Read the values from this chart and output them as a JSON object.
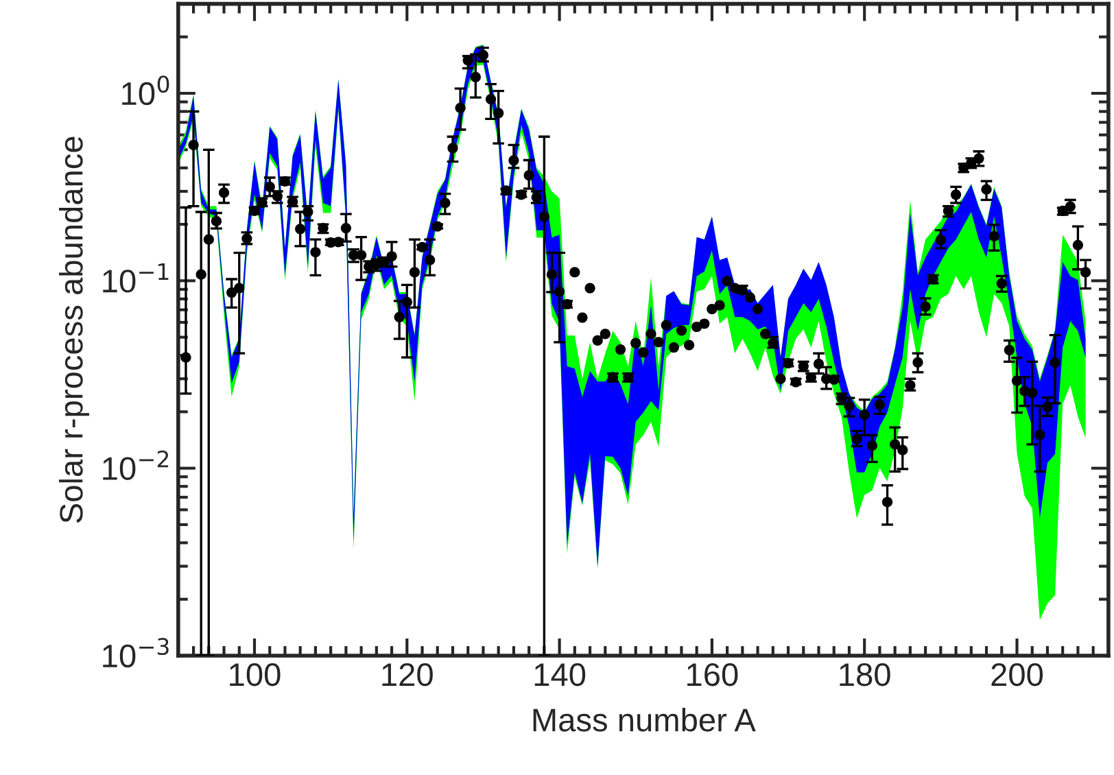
{
  "chart_data": {
    "type": "scatter",
    "xlabel": "Mass number A",
    "ylabel": "Solar r-process abundance",
    "log": "y",
    "xlim": [
      90,
      212
    ],
    "xticks": [
      100,
      120,
      140,
      160,
      180,
      200
    ],
    "ylim": [
      0.001,
      3
    ],
    "yticks": [
      {
        "value": 0.001,
        "label": "10$^{−3}$"
      },
      {
        "value": 0.01,
        "label": "10$^{−2}$"
      },
      {
        "value": 0.1,
        "label": "10$^{−1}$"
      },
      {
        "value": 1,
        "label": "10$^{0}$"
      }
    ],
    "grid": false,
    "series": [
      {
        "type": "area",
        "color": "#00ff00",
        "values": [
          null,
          null,
          null,
          null,
          null,
          null,
          null,
          null,
          null,
          null,
          null,
          null,
          null,
          null,
          null,
          null,
          null,
          null,
          null,
          null,
          null,
          null,
          null,
          null,
          null,
          null,
          null,
          null,
          null,
          null,
          null,
          null,
          null,
          null,
          null,
          null,
          null,
          null,
          null,
          null,
          null,
          null,
          null,
          null,
          null,
          null,
          null,
          null,
          null,
          null,
          null,
          null,
          null,
          null,
          null,
          null,
          null,
          null,
          null,
          null,
          null,
          null,
          null,
          null,
          null,
          null,
          null,
          null,
          null,
          null,
          null,
          null,
          null,
          null,
          null,
          null,
          null,
          null,
          null,
          null,
          null,
          null,
          null,
          null,
          null,
          null,
          null,
          null,
          null,
          null,
          null,
          null,
          null,
          null,
          null,
          null,
          null,
          null,
          null,
          null,
          null,
          null,
          null,
          null,
          null,
          null,
          null,
          null,
          null,
          null,
          null,
          null,
          null,
          null,
          null,
          null,
          null,
          null,
          null,
          null
        ],
        "x": [
          90,
          91,
          92,
          93,
          94,
          95,
          96,
          97,
          98,
          99,
          100,
          101,
          102,
          103,
          104,
          105,
          106,
          107,
          108,
          109,
          110,
          111,
          112,
          113,
          114,
          115,
          116,
          117,
          118,
          119,
          120,
          121,
          122,
          123,
          124,
          125,
          126,
          127,
          128,
          129,
          130,
          131,
          132,
          133,
          134,
          135,
          136,
          137,
          138,
          139,
          140,
          141,
          142,
          143,
          144,
          145,
          146,
          147,
          148,
          149,
          150,
          151,
          152,
          153,
          154,
          155,
          156,
          157,
          158,
          159,
          160,
          161,
          162,
          163,
          164,
          165,
          166,
          167,
          168,
          169,
          170,
          171,
          172,
          173,
          174,
          175,
          176,
          177,
          178,
          179,
          180,
          181,
          182,
          183,
          184,
          185,
          186,
          187,
          188,
          189,
          190,
          191,
          192,
          193,
          194,
          195,
          196,
          197,
          198,
          199,
          200,
          201,
          202,
          203,
          204,
          205,
          206,
          207,
          208,
          209
        ],
        "upper": [
          0.52,
          0.63,
          0.99,
          0.31,
          0.25,
          0.25,
          0.087,
          0.04,
          0.05,
          0.19,
          0.44,
          0.25,
          0.67,
          0.58,
          0.15,
          0.47,
          0.61,
          0.22,
          0.82,
          0.36,
          0.41,
          1.2,
          0.42,
          0.0057,
          0.087,
          0.115,
          0.175,
          0.12,
          0.135,
          0.087,
          0.087,
          0.052,
          0.135,
          0.2,
          0.3,
          0.35,
          0.58,
          0.86,
          1.42,
          1.77,
          1.82,
          1.17,
          0.78,
          0.25,
          0.5,
          0.83,
          0.66,
          0.4,
          0.36,
          0.3,
          0.275,
          0.051,
          0.051,
          0.03,
          0.047,
          0.03,
          0.041,
          0.054,
          0.047,
          0.035,
          0.061,
          0.039,
          0.104,
          0.035,
          0.083,
          0.088,
          0.076,
          0.075,
          0.171,
          0.166,
          0.22,
          0.129,
          0.133,
          0.095,
          0.088,
          0.09,
          0.076,
          0.085,
          0.095,
          0.039,
          0.08,
          0.095,
          0.116,
          0.101,
          0.126,
          0.095,
          0.064,
          0.035,
          0.025,
          0.022,
          0.02,
          0.024,
          0.026,
          0.029,
          0.044,
          0.085,
          0.268,
          0.11,
          0.166,
          0.186,
          0.208,
          0.246,
          0.25,
          0.28,
          0.33,
          0.25,
          0.2,
          0.317,
          0.25,
          0.11,
          0.065,
          0.052,
          0.045,
          0.03,
          0.04,
          0.055,
          0.176,
          0.149,
          0.126,
          0.061
        ],
        "lower": [
          0.42,
          0.52,
          0.72,
          0.25,
          0.22,
          0.21,
          0.066,
          0.024,
          0.035,
          0.14,
          0.27,
          0.18,
          0.45,
          0.39,
          0.1,
          0.27,
          0.4,
          0.11,
          0.52,
          0.23,
          0.23,
          0.8,
          0.21,
          0.0037,
          0.062,
          0.08,
          0.13,
          0.09,
          0.1,
          0.063,
          0.057,
          0.0228,
          0.09,
          0.125,
          0.21,
          0.26,
          0.41,
          0.59,
          1.05,
          1.4,
          1.42,
          0.9,
          0.53,
          0.125,
          0.34,
          0.62,
          0.44,
          0.17,
          0.17,
          0.065,
          0.055,
          0.0035,
          0.009,
          0.0063,
          0.011,
          0.0029,
          0.011,
          0.0105,
          0.0094,
          0.0064,
          0.0134,
          0.015,
          0.0177,
          0.013,
          0.039,
          0.043,
          0.045,
          0.048,
          0.0875,
          0.09,
          0.106,
          0.059,
          0.064,
          0.041,
          0.049,
          0.041,
          0.033,
          0.044,
          0.031,
          0.025,
          0.037,
          0.049,
          0.055,
          0.044,
          0.061,
          0.037,
          0.025,
          0.0188,
          0.0095,
          0.0054,
          0.0072,
          0.0076,
          0.01,
          0.0085,
          0.0124,
          0.0208,
          0.061,
          0.037,
          0.061,
          0.064,
          0.08,
          0.085,
          0.106,
          0.09,
          0.106,
          0.068,
          0.05,
          0.085,
          0.076,
          0.057,
          0.012,
          0.0071,
          0.0061,
          0.00155,
          0.0019,
          0.0021,
          0.022,
          0.0277,
          0.0188,
          0.0145
        ]
      },
      {
        "type": "area",
        "color": "#0000ff",
        "values": [
          null,
          null,
          null,
          null,
          null,
          null,
          null,
          null,
          null,
          null,
          null,
          null,
          null,
          null,
          null,
          null,
          null,
          null,
          null,
          null,
          null,
          null,
          null,
          null,
          null,
          null,
          null,
          null,
          null,
          null,
          null,
          null,
          null,
          null,
          null,
          null,
          null,
          null,
          null,
          null,
          null,
          null,
          null,
          null,
          null,
          null,
          null,
          null,
          null,
          null,
          null,
          null,
          null,
          null,
          null,
          null,
          null,
          null,
          null,
          null,
          null,
          null,
          null,
          null,
          null,
          null,
          null,
          null,
          null,
          null,
          null,
          null,
          null,
          null,
          null,
          null,
          null,
          null,
          null,
          null,
          null,
          null,
          null,
          null,
          null,
          null,
          null,
          null,
          null,
          null,
          null,
          null,
          null,
          null,
          null,
          null,
          null,
          null,
          null,
          null,
          null,
          null,
          null,
          null,
          null,
          null,
          null,
          null,
          null,
          null,
          null,
          null,
          null,
          null,
          null,
          null,
          null,
          null,
          null,
          null
        ],
        "x": [
          90,
          91,
          92,
          93,
          94,
          95,
          96,
          97,
          98,
          99,
          100,
          101,
          102,
          103,
          104,
          105,
          106,
          107,
          108,
          109,
          110,
          111,
          112,
          113,
          114,
          115,
          116,
          117,
          118,
          119,
          120,
          121,
          122,
          123,
          124,
          125,
          126,
          127,
          128,
          129,
          130,
          131,
          132,
          133,
          134,
          135,
          136,
          137,
          138,
          139,
          140,
          141,
          142,
          143,
          144,
          145,
          146,
          147,
          148,
          149,
          150,
          151,
          152,
          153,
          154,
          155,
          156,
          157,
          158,
          159,
          160,
          161,
          162,
          163,
          164,
          165,
          166,
          167,
          168,
          169,
          170,
          171,
          172,
          173,
          174,
          175,
          176,
          177,
          178,
          179,
          180,
          181,
          182,
          183,
          184,
          185,
          186,
          187,
          188,
          189,
          190,
          191,
          192,
          193,
          194,
          195,
          196,
          197,
          198,
          199,
          200,
          201,
          202,
          203,
          204,
          205,
          206,
          207,
          208,
          209
        ],
        "upper": [
          0.5,
          0.6,
          0.97,
          0.3,
          0.24,
          0.24,
          0.085,
          0.039,
          0.049,
          0.186,
          0.43,
          0.24,
          0.66,
          0.57,
          0.149,
          0.46,
          0.6,
          0.21,
          0.8,
          0.35,
          0.4,
          1.18,
          0.41,
          0.0055,
          0.085,
          0.112,
          0.171,
          0.119,
          0.133,
          0.085,
          0.085,
          0.051,
          0.133,
          0.197,
          0.29,
          0.345,
          0.57,
          0.85,
          1.4,
          1.75,
          1.8,
          1.15,
          0.76,
          0.246,
          0.48,
          0.82,
          0.64,
          0.39,
          0.33,
          0.17,
          0.176,
          0.035,
          0.034,
          0.024,
          0.033,
          0.029,
          0.029,
          0.033,
          0.028,
          0.022,
          0.051,
          0.035,
          0.074,
          0.026,
          0.083,
          0.088,
          0.075,
          0.074,
          0.171,
          0.166,
          0.22,
          0.129,
          0.133,
          0.095,
          0.0875,
          0.09,
          0.076,
          0.085,
          0.095,
          0.039,
          0.08,
          0.095,
          0.116,
          0.101,
          0.126,
          0.095,
          0.064,
          0.035,
          0.025,
          0.021,
          0.0198,
          0.0235,
          0.025,
          0.028,
          0.043,
          0.072,
          0.23,
          0.107,
          0.133,
          0.157,
          0.186,
          0.22,
          0.233,
          0.276,
          0.326,
          0.246,
          0.197,
          0.309,
          0.246,
          0.106,
          0.061,
          0.049,
          0.043,
          0.029,
          0.039,
          0.054,
          0.126,
          0.106,
          0.101,
          0.049
        ],
        "lower": [
          0.44,
          0.54,
          0.76,
          0.26,
          0.23,
          0.22,
          0.074,
          0.0285,
          0.037,
          0.149,
          0.29,
          0.186,
          0.48,
          0.41,
          0.107,
          0.29,
          0.43,
          0.119,
          0.57,
          0.26,
          0.25,
          0.85,
          0.22,
          0.0041,
          0.068,
          0.085,
          0.137,
          0.095,
          0.107,
          0.068,
          0.061,
          0.029,
          0.095,
          0.133,
          0.22,
          0.276,
          0.46,
          0.64,
          1.12,
          1.48,
          1.48,
          0.95,
          0.57,
          0.133,
          0.365,
          0.68,
          0.48,
          0.186,
          0.186,
          0.075,
          0.06,
          0.0039,
          0.0095,
          0.0065,
          0.012,
          0.003,
          0.0116,
          0.0115,
          0.01,
          0.0071,
          0.0177,
          0.0198,
          0.0228,
          0.0204,
          0.052,
          0.056,
          0.058,
          0.058,
          0.106,
          0.112,
          0.145,
          0.085,
          0.095,
          0.064,
          0.064,
          0.061,
          0.055,
          0.057,
          0.048,
          0.026,
          0.054,
          0.064,
          0.076,
          0.068,
          0.08,
          0.057,
          0.037,
          0.025,
          0.0167,
          0.0095,
          0.0095,
          0.012,
          0.0167,
          0.0198,
          0.028,
          0.039,
          0.09,
          0.054,
          0.085,
          0.106,
          0.126,
          0.149,
          0.166,
          0.197,
          0.233,
          0.166,
          0.133,
          0.22,
          0.133,
          0.076,
          0.039,
          0.0222,
          0.0167,
          0.0054,
          0.0107,
          0.0119,
          0.044,
          0.061,
          0.054,
          0.039
        ]
      },
      {
        "color": "#000000",
        "marker": "circle",
        "x": [
          91,
          92,
          93,
          94,
          95,
          96,
          97,
          98,
          99,
          100,
          101,
          102,
          103,
          104,
          105,
          106,
          107,
          108,
          109,
          110,
          111,
          112,
          113,
          114,
          115,
          116,
          117,
          118,
          119,
          120,
          121,
          122,
          123,
          124,
          125,
          126,
          127,
          128,
          129,
          130,
          131,
          132,
          133,
          134,
          135,
          136,
          137,
          138,
          139,
          140,
          141,
          142,
          143,
          144,
          145,
          146,
          147,
          148,
          149,
          150,
          151,
          152,
          153,
          154,
          155,
          156,
          157,
          158,
          159,
          160,
          161,
          162,
          163,
          164,
          165,
          166,
          167,
          168,
          169,
          170,
          171,
          172,
          173,
          174,
          175,
          176,
          177,
          178,
          179,
          180,
          181,
          182,
          183,
          184,
          185,
          186,
          187,
          188,
          189,
          190,
          191,
          192,
          193,
          194,
          195,
          196,
          197,
          198,
          199,
          200,
          201,
          202,
          203,
          204,
          205,
          206,
          207,
          208,
          209
        ],
        "values": [
          0.039,
          0.53,
          0.108,
          0.166,
          0.208,
          0.295,
          0.0865,
          0.0914,
          0.168,
          0.236,
          0.261,
          0.317,
          0.283,
          0.339,
          0.264,
          0.189,
          0.233,
          0.142,
          0.191,
          0.16,
          0.161,
          0.191,
          0.137,
          0.137,
          0.119,
          0.122,
          0.126,
          0.135,
          0.064,
          0.077,
          0.111,
          0.151,
          0.129,
          0.195,
          0.26,
          0.51,
          0.836,
          1.5,
          1.22,
          1.6,
          0.93,
          0.785,
          0.303,
          0.439,
          0.288,
          0.365,
          0.279,
          0.22,
          0.108,
          0.0875,
          0.075,
          0.111,
          0.0636,
          0.0914,
          0.048,
          0.052,
          0.0305,
          0.043,
          0.0305,
          0.0465,
          0.0415,
          0.052,
          0.047,
          0.058,
          0.0441,
          0.0543,
          0.0454,
          0.0568,
          0.059,
          0.0706,
          0.074,
          0.0995,
          0.0914,
          0.089,
          0.0813,
          0.0706,
          0.052,
          0.0465,
          0.03,
          0.0363,
          0.0288,
          0.035,
          0.0305,
          0.036,
          0.03,
          0.0297,
          0.0237,
          0.0215,
          0.0143,
          0.0193,
          0.0132,
          0.0218,
          0.0066,
          0.0134,
          0.0125,
          0.0277,
          0.0367,
          0.0727,
          0.102,
          0.165,
          0.236,
          0.288,
          0.401,
          0.425,
          0.449,
          0.307,
          0.173,
          0.0967,
          0.0427,
          0.0293,
          0.0258,
          0.0252,
          0.0151,
          0.0212,
          0.0366,
          0.236,
          0.249,
          0.155,
          0.111
        ],
        "errors": [
          [
            0.025,
            0.246
          ],
          [
            0.25,
            0.8
          ],
          [
            0.001,
            0.233
          ],
          [
            0.001,
            0.5
          ],
          [
            0.19,
            0.23
          ],
          [
            0.26,
            0.326
          ],
          [
            0.072,
            0.102
          ],
          [
            0.041,
            0.141
          ],
          [
            0.157,
            0.181
          ],
          [
            0.227,
            0.246
          ],
          [
            0.25,
            0.275
          ],
          [
            0.283,
            0.355
          ],
          [
            0.26,
            0.3
          ],
          [
            0.326,
            0.355
          ],
          [
            0.25,
            0.28
          ],
          [
            0.153,
            0.233
          ],
          [
            0.21,
            0.25
          ],
          [
            0.107,
            0.166
          ],
          [
            0.18,
            0.2
          ],
          [
            0.155,
            0.166
          ],
          [
            0.155,
            0.166
          ],
          [
            0.162,
            0.227
          ],
          [
            0.126,
            0.147
          ],
          [
            0.101,
            0.171
          ],
          [
            0.111,
            0.127
          ],
          [
            0.113,
            0.13
          ],
          [
            0.119,
            0.133
          ],
          [
            0.119,
            0.161
          ],
          [
            0.049,
            0.078
          ],
          [
            0.039,
            0.095
          ],
          [
            0.072,
            0.166
          ],
          [
            0.147,
            0.155
          ],
          [
            0.107,
            0.166
          ],
          [
            0.19,
            0.2
          ],
          [
            0.227,
            0.291
          ],
          [
            0.432,
            0.587
          ],
          [
            0.64,
            1.06
          ],
          [
            1.36,
            1.58
          ],
          [
            0.95,
            1.61
          ],
          [
            1.48,
            1.75
          ],
          [
            0.73,
            1.12
          ],
          [
            0.54,
            1.03
          ],
          [
            0.29,
            0.31
          ],
          [
            0.4,
            0.53
          ],
          [
            0.28,
            0.3
          ],
          [
            0.31,
            0.44
          ],
          [
            0.26,
            0.3
          ],
          [
            0.001,
            0.587
          ],
          [
            0.087,
            0.141
          ],
          [
            0.047,
            0.141
          ],
          [
            0.072,
            0.078
          ],
          null,
          null,
          null,
          null,
          null,
          [
            0.029,
            0.032
          ],
          null,
          [
            0.029,
            0.032
          ],
          null,
          null,
          null,
          null,
          null,
          null,
          null,
          null,
          null,
          null,
          null,
          null,
          null,
          null,
          [
            0.086,
            0.094
          ],
          null,
          null,
          null,
          [
            0.044,
            0.05
          ],
          null,
          [
            0.035,
            0.038
          ],
          [
            0.028,
            0.03
          ],
          [
            0.033,
            0.037
          ],
          [
            0.029,
            0.032
          ],
          [
            0.032,
            0.041
          ],
          [
            0.0265,
            0.0346
          ],
          [
            0.029,
            0.031
          ],
          [
            0.022,
            0.025
          ],
          [
            0.0189,
            0.0237
          ],
          [
            0.0131,
            0.0158
          ],
          [
            0.015,
            0.0232
          ],
          [
            0.0108,
            0.015
          ],
          [
            0.0195,
            0.024
          ],
          [
            0.005,
            0.0081
          ],
          [
            0.0096,
            0.0165
          ],
          [
            0.0099,
            0.0146
          ],
          [
            0.026,
            0.03
          ],
          [
            0.0325,
            0.041
          ],
          [
            0.066,
            0.0806
          ],
          [
            0.097,
            0.107
          ],
          [
            0.149,
            0.186
          ],
          [
            0.22,
            0.25
          ],
          [
            0.26,
            0.317
          ],
          [
            0.38,
            0.42
          ],
          [
            0.4,
            0.45
          ],
          [
            0.41,
            0.49
          ],
          [
            0.27,
            0.34
          ],
          [
            0.145,
            0.199
          ],
          [
            0.0875,
            0.106
          ],
          [
            0.037,
            0.048
          ],
          [
            0.0198,
            0.0388
          ],
          [
            0.0215,
            0.0306
          ],
          [
            0.0134,
            0.037
          ],
          [
            0.0096,
            0.0215
          ],
          [
            0.019,
            0.0238
          ],
          [
            0.0222,
            0.0513
          ],
          [
            0.225,
            0.245
          ],
          [
            0.23,
            0.27
          ],
          [
            0.115,
            0.195
          ],
          [
            0.091,
            0.129
          ]
        ]
      }
    ]
  }
}
